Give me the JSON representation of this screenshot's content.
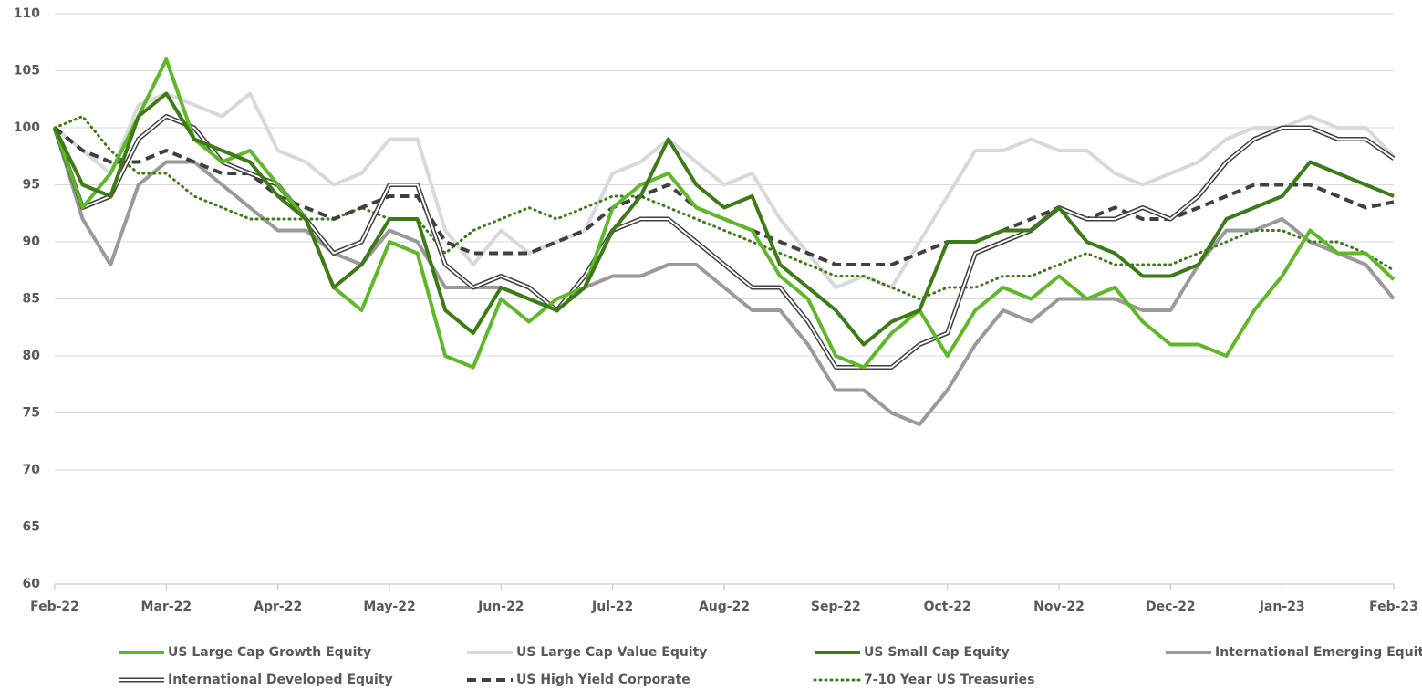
{
  "chart_data": {
    "type": "line",
    "categories": [
      "Feb-22",
      null,
      null,
      null,
      "Mar-22",
      null,
      null,
      null,
      "Apr-22",
      null,
      null,
      null,
      "May-22",
      null,
      null,
      null,
      "Jun-22",
      null,
      null,
      null,
      "Jul-22",
      null,
      null,
      null,
      "Aug-22",
      null,
      null,
      null,
      "Sep-22",
      null,
      null,
      null,
      "Oct-22",
      null,
      null,
      null,
      "Nov-22",
      null,
      null,
      null,
      "Dec-22",
      null,
      null,
      null,
      "Jan-23",
      null,
      null,
      null,
      "Feb-23"
    ],
    "ylim": [
      60,
      110
    ],
    "yticks": [
      60,
      65,
      70,
      75,
      80,
      85,
      90,
      95,
      100,
      105,
      110
    ],
    "grid": true,
    "legend": "bottom",
    "series": [
      {
        "name": "US Large Cap Growth Equity",
        "color": "#5fb82a",
        "line_style": "solid",
        "values": [
          100,
          93,
          96,
          101,
          106,
          99,
          97,
          98,
          95,
          92,
          86,
          84,
          90,
          89,
          80,
          79,
          85,
          83,
          85,
          86,
          93,
          95,
          96,
          93,
          92,
          91,
          87,
          85,
          80,
          79,
          82,
          84,
          80,
          84,
          86,
          85,
          87,
          85,
          86,
          83,
          81,
          81,
          80,
          84,
          87,
          91,
          89,
          89,
          86.7
        ]
      },
      {
        "name": "US Large Cap Value Equity",
        "color": "#d9d9d9",
        "line_style": "solid",
        "values": [
          100,
          98,
          96,
          102,
          103,
          102,
          101,
          103,
          98,
          97,
          95,
          96,
          99,
          99,
          91,
          88,
          91,
          89,
          90,
          91,
          96,
          97,
          99,
          97,
          95,
          96,
          92,
          89,
          86,
          87,
          86,
          90,
          94,
          98,
          98,
          99,
          98,
          98,
          96,
          95,
          96,
          97,
          99,
          100,
          100,
          101,
          100,
          100,
          97.5
        ]
      },
      {
        "name": "US Small Cap Equity",
        "color": "#3d7b16",
        "line_style": "solid",
        "values": [
          100,
          95,
          94,
          101,
          103,
          99,
          98,
          97,
          94,
          92,
          86,
          88,
          92,
          92,
          84,
          82,
          86,
          85,
          84,
          86,
          91,
          94,
          99,
          95,
          93,
          94,
          88,
          86,
          84,
          81,
          83,
          84,
          90,
          90,
          91,
          91,
          93,
          90,
          89,
          87,
          87,
          88,
          92,
          93,
          94,
          97,
          96,
          95,
          94
        ]
      },
      {
        "name": "International Emerging Equity",
        "color": "#9a9a9a",
        "line_style": "solid",
        "values": [
          100,
          92,
          88,
          95,
          97,
          97,
          95,
          93,
          91,
          91,
          89,
          88,
          91,
          90,
          86,
          86,
          86,
          85,
          84,
          86,
          87,
          87,
          88,
          88,
          86,
          84,
          84,
          81,
          77,
          77,
          75,
          74,
          77,
          81,
          84,
          83,
          85,
          85,
          85,
          84,
          84,
          88,
          91,
          91,
          92,
          90,
          89,
          88,
          85
        ]
      },
      {
        "name": "International Developed Equity",
        "color": "#404040",
        "line_style": "double",
        "values": [
          100,
          93,
          94,
          99,
          101,
          100,
          97,
          96,
          95,
          92,
          89,
          90,
          95,
          95,
          88,
          86,
          87,
          86,
          84,
          87,
          91,
          92,
          92,
          90,
          88,
          86,
          86,
          83,
          79,
          79,
          79,
          81,
          82,
          89,
          90,
          91,
          93,
          92,
          92,
          93,
          92,
          94,
          97,
          99,
          100,
          100,
          99,
          99,
          97.3
        ]
      },
      {
        "name": "US High Yield Corporate",
        "color": "#404040",
        "line_style": "dashed",
        "values": [
          100,
          98,
          97,
          97,
          98,
          97,
          96,
          96,
          94,
          93,
          92,
          93,
          94,
          94,
          90,
          89,
          89,
          89,
          90,
          91,
          93,
          94,
          95,
          93,
          92,
          91,
          90,
          89,
          88,
          88,
          88,
          89,
          90,
          90,
          91,
          92,
          93,
          92,
          93,
          92,
          92,
          93,
          94,
          95,
          95,
          95,
          94,
          93,
          93.5
        ]
      },
      {
        "name": "7-10 Year US Treasuries",
        "color": "#3d7b16",
        "line_style": "dotted",
        "values": [
          100,
          101,
          98,
          96,
          96,
          94,
          93,
          92,
          92,
          92,
          92,
          93,
          92,
          92,
          89,
          91,
          92,
          93,
          92,
          93,
          94,
          94,
          93,
          92,
          91,
          90,
          89,
          88,
          87,
          87,
          86,
          85,
          86,
          86,
          87,
          87,
          88,
          89,
          88,
          88,
          88,
          89,
          90,
          91,
          91,
          90,
          90,
          89,
          87.5
        ]
      }
    ]
  }
}
